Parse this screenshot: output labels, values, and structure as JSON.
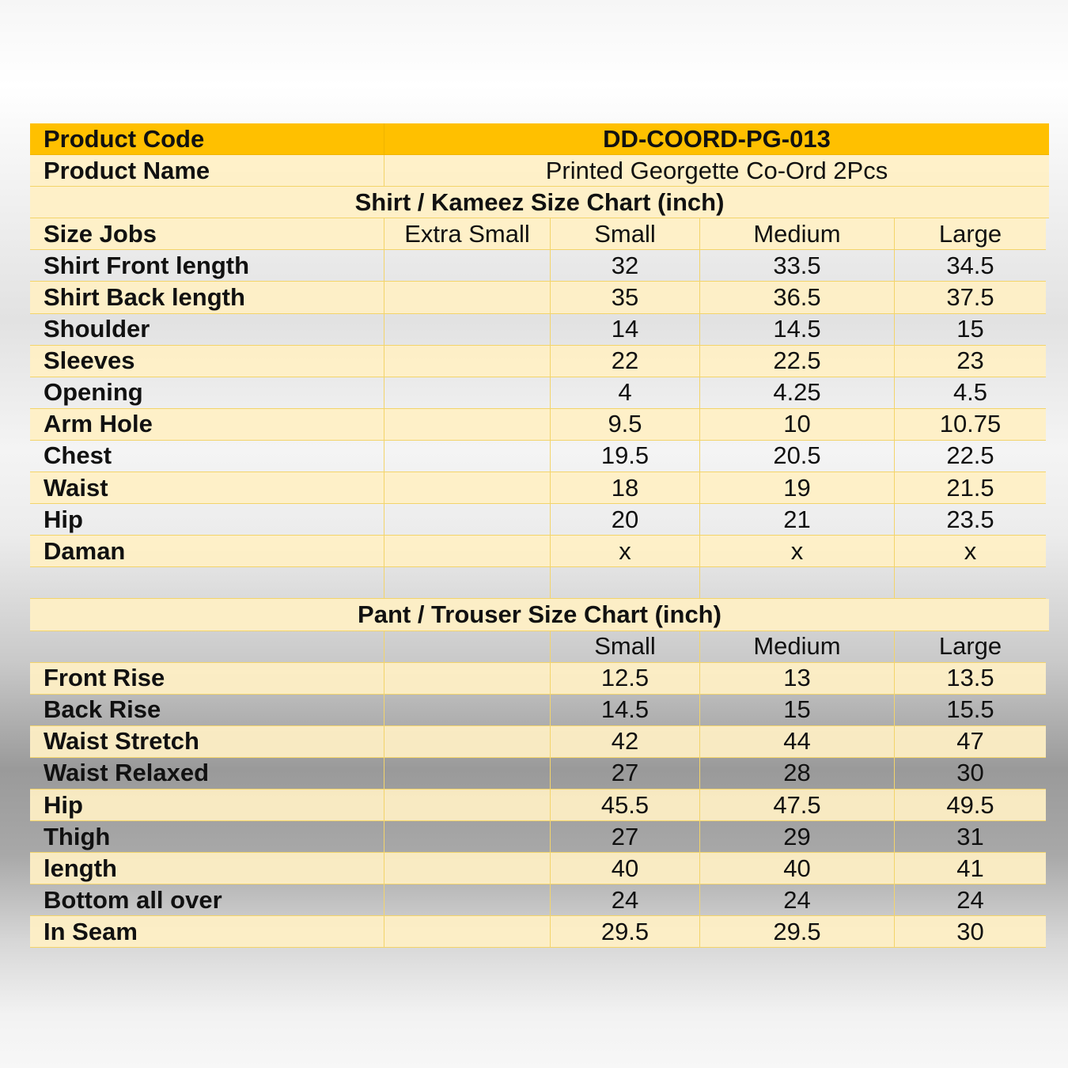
{
  "product": {
    "code_label": "Product Code",
    "code_value": "DD-COORD-PG-013",
    "name_label": "Product Name",
    "name_value": "Printed Georgette Co-Ord 2Pcs"
  },
  "shirt_chart": {
    "title": "Shirt / Kameez Size Chart (inch)",
    "header": {
      "label": "Size Jobs",
      "xs": "Extra Small",
      "s": "Small",
      "m": "Medium",
      "l": "Large"
    },
    "rows": [
      {
        "label": "Shirt Front length",
        "xs": "",
        "s": "32",
        "m": "33.5",
        "l": "34.5"
      },
      {
        "label": "Shirt Back length",
        "xs": "",
        "s": "35",
        "m": "36.5",
        "l": "37.5"
      },
      {
        "label": "Shoulder",
        "xs": "",
        "s": "14",
        "m": "14.5",
        "l": "15"
      },
      {
        "label": "Sleeves",
        "xs": "",
        "s": "22",
        "m": "22.5",
        "l": "23"
      },
      {
        "label": "Opening",
        "xs": "",
        "s": "4",
        "m": "4.25",
        "l": "4.5"
      },
      {
        "label": "Arm Hole",
        "xs": "",
        "s": "9.5",
        "m": "10",
        "l": "10.75"
      },
      {
        "label": "Chest",
        "xs": "",
        "s": "19.5",
        "m": "20.5",
        "l": "22.5"
      },
      {
        "label": "Waist",
        "xs": "",
        "s": "18",
        "m": "19",
        "l": "21.5"
      },
      {
        "label": "Hip",
        "xs": "",
        "s": "20",
        "m": "21",
        "l": "23.5"
      },
      {
        "label": "Daman",
        "xs": "",
        "s": "x",
        "m": "x",
        "l": "x"
      }
    ]
  },
  "pant_chart": {
    "title": "Pant / Trouser Size Chart (inch)",
    "header": {
      "label": "",
      "xs": "",
      "s": "Small",
      "m": "Medium",
      "l": "Large"
    },
    "rows": [
      {
        "label": "Front Rise",
        "xs": "",
        "s": "12.5",
        "m": "13",
        "l": "13.5"
      },
      {
        "label": "Back Rise",
        "xs": "",
        "s": "14.5",
        "m": "15",
        "l": "15.5"
      },
      {
        "label": "Waist Stretch",
        "xs": "",
        "s": "42",
        "m": "44",
        "l": "47"
      },
      {
        "label": "Waist Relaxed",
        "xs": "",
        "s": "27",
        "m": "28",
        "l": "30"
      },
      {
        "label": "Hip",
        "xs": "",
        "s": "45.5",
        "m": "47.5",
        "l": "49.5"
      },
      {
        "label": "Thigh",
        "xs": "",
        "s": "27",
        "m": "29",
        "l": "31"
      },
      {
        "label": "length",
        "xs": "",
        "s": "40",
        "m": "40",
        "l": "41"
      },
      {
        "label": "Bottom all over",
        "xs": "",
        "s": "24",
        "m": "24",
        "l": "24"
      },
      {
        "label": "In Seam",
        "xs": "",
        "s": "29.5",
        "m": "29.5",
        "l": "30"
      }
    ]
  },
  "colors": {
    "header_gold": "#ffc000",
    "row_cream": "#fff0c4",
    "grid_line": "#f3d46a"
  }
}
